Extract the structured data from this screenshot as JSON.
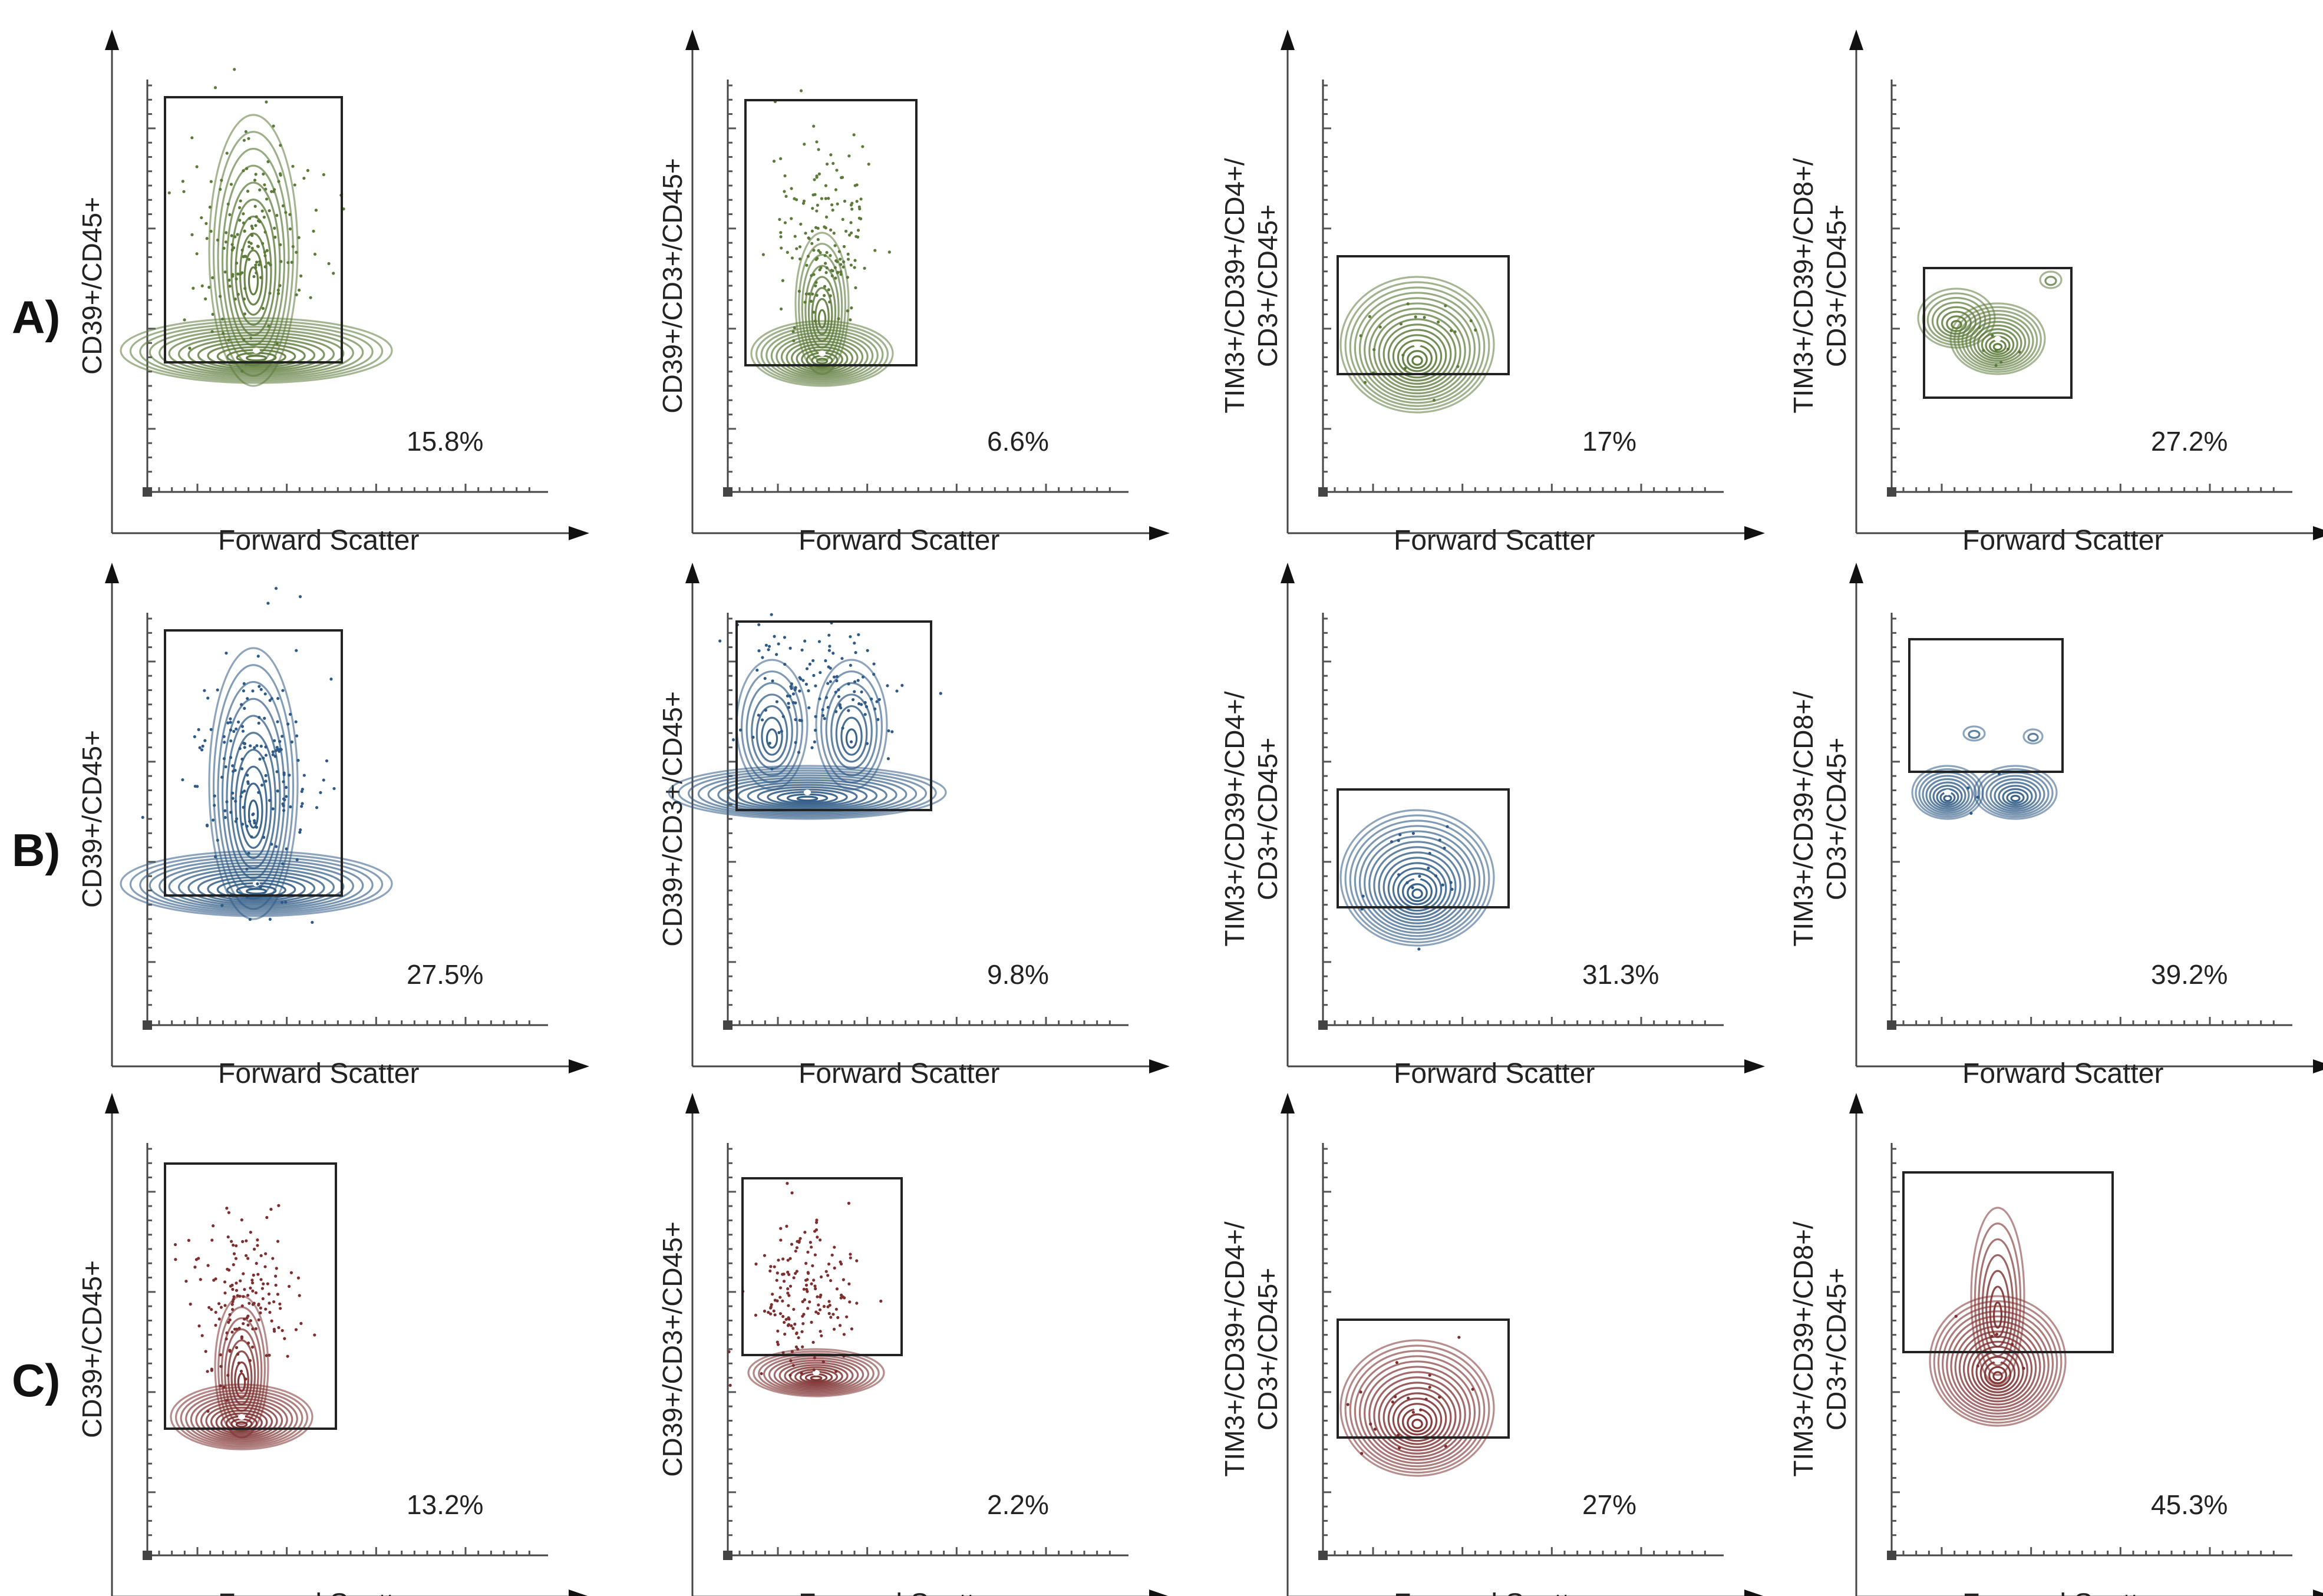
{
  "figure": {
    "rows": [
      {
        "label": "A)",
        "color": "#5c7a3a",
        "panels": [
          {
            "ylabel": [
              "CD39+/CD45+"
            ],
            "xlabel": "Forward Scatter",
            "percent": "15.8%",
            "shape": "tower"
          },
          {
            "ylabel": [
              "CD39+/CD3+/CD45+"
            ],
            "xlabel": "Forward Scatter",
            "percent": "6.6%",
            "shape": "spike"
          },
          {
            "ylabel": [
              "TIM3+/CD39+/CD4+/",
              "CD3+/CD45+"
            ],
            "xlabel": "Forward Scatter",
            "percent": "17%",
            "shape": "round"
          },
          {
            "ylabel": [
              "TIM3+/CD39+/CD8+/",
              "CD3+/CD45+"
            ],
            "xlabel": "Forward Scatter",
            "percent": "27.2%",
            "shape": "pear"
          }
        ]
      },
      {
        "label": "B)",
        "color": "#2f5a85",
        "panels": [
          {
            "ylabel": [
              "CD39+/CD45+"
            ],
            "xlabel": "Forward Scatter",
            "percent": "27.5%",
            "shape": "tower"
          },
          {
            "ylabel": [
              "CD39+/CD3+/CD45+"
            ],
            "xlabel": "Forward Scatter",
            "percent": "9.8%",
            "shape": "wave"
          },
          {
            "ylabel": [
              "TIM3+/CD39+/CD4+/",
              "CD3+/CD45+"
            ],
            "xlabel": "Forward Scatter",
            "percent": "31.3%",
            "shape": "round"
          },
          {
            "ylabel": [
              "TIM3+/CD39+/CD8+/",
              "CD3+/CD45+"
            ],
            "xlabel": "Forward Scatter",
            "percent": "39.2%",
            "shape": "twin"
          }
        ]
      },
      {
        "label": "C)",
        "color": "#7d2f2f",
        "panels": [
          {
            "ylabel": [
              "CD39+/CD45+"
            ],
            "xlabel": "Forward Scatter",
            "percent": "13.2%",
            "shape": "spike"
          },
          {
            "ylabel": [
              "CD39+/CD3+/CD45+"
            ],
            "xlabel": "Forward Scatter",
            "percent": "2.2%",
            "shape": "flat"
          },
          {
            "ylabel": [
              "TIM3+/CD39+/CD4+/",
              "CD3+/CD45+"
            ],
            "xlabel": "Forward Scatter",
            "percent": "27%",
            "shape": "round"
          },
          {
            "ylabel": [
              "TIM3+/CD39+/CD8+/",
              "CD3+/CD45+"
            ],
            "xlabel": "Forward Scatter",
            "percent": "45.3%",
            "shape": "drop"
          }
        ]
      }
    ]
  },
  "chart_data": {
    "type": "scatter",
    "title": "",
    "description_of_panels": "3x4 grid of flow-cytometry contour plots with rectangular gates",
    "xlabel": "Forward Scatter",
    "series": [
      {
        "name": "A)",
        "gate_percentages": [
          15.8,
          6.6,
          17,
          27.2
        ]
      },
      {
        "name": "B)",
        "gate_percentages": [
          27.5,
          9.8,
          31.3,
          39.2
        ]
      },
      {
        "name": "C)",
        "gate_percentages": [
          13.2,
          2.2,
          27,
          45.3
        ]
      }
    ],
    "ylabels": [
      "CD39+/CD45+",
      "CD39+/CD3+/CD45+",
      "TIM3+/CD39+/CD4+/CD3+/CD45+",
      "TIM3+/CD39+/CD8+/CD3+/CD45+"
    ]
  }
}
